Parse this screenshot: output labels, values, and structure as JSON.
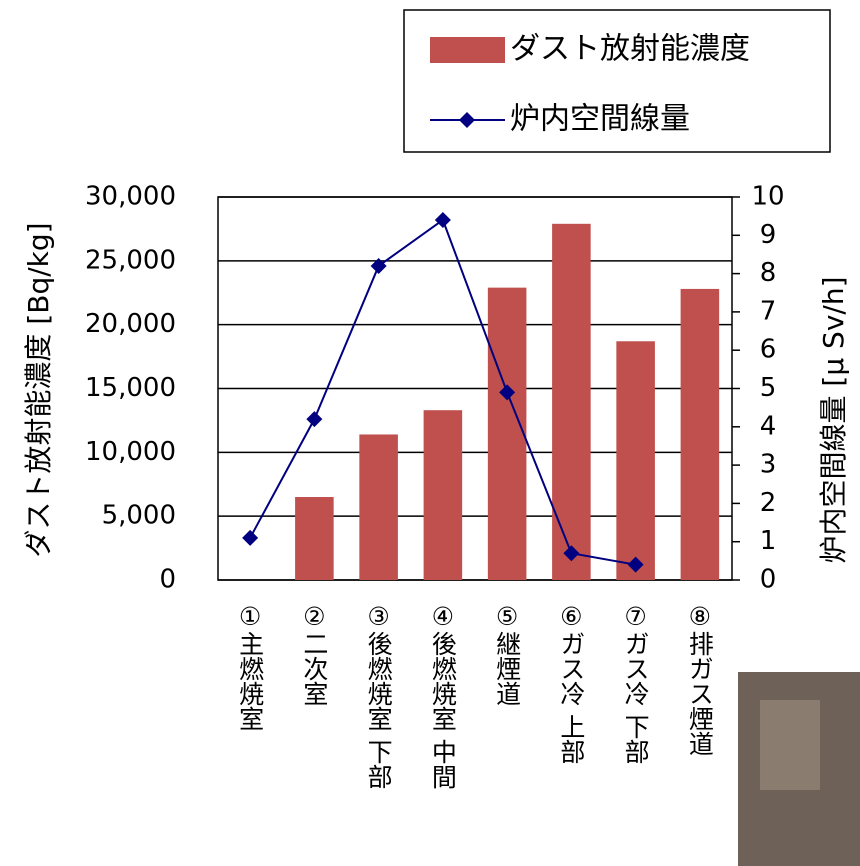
{
  "chart_data": {
    "type": "bar-line",
    "categories": [
      "①主燃焼室",
      "②二次室",
      "③後燃焼室 下部",
      "④後燃焼室 中間",
      "⑤継煙道",
      "⑥ガス冷 上部",
      "⑦ガス冷 下部",
      "⑧排ガス煙道"
    ],
    "series": [
      {
        "name": "ダスト放射能濃度",
        "type": "bar",
        "color": "#c0504d",
        "values": [
          null,
          6500,
          11400,
          13300,
          22900,
          27900,
          18700,
          22800
        ]
      },
      {
        "name": "炉内空間線量",
        "type": "line",
        "axis": "y2",
        "color": "#000080",
        "values": [
          1.1,
          4.2,
          8.2,
          9.4,
          4.9,
          0.7,
          0.4,
          null
        ]
      }
    ],
    "ylabel": "ダスト放射能濃度 [Bq/kg]",
    "y2label": "炉内空間線量 [μ Sv/h]",
    "ylim": [
      0,
      30000
    ],
    "yticks": [
      0,
      {
        "value": 5000,
        "label": "5,000"
      },
      {
        "value": 10000,
        "label": "10,000"
      },
      {
        "value": 15000,
        "label": "15,000"
      },
      {
        "value": 20000,
        "label": "20,000"
      },
      {
        "value": 25000,
        "label": "25,000"
      },
      {
        "value": 30000,
        "label": "30,000"
      }
    ],
    "y2lim": [
      0,
      10
    ],
    "y2ticks": [
      0,
      1,
      2,
      3,
      4,
      5,
      6,
      7,
      8,
      9,
      10
    ],
    "grid": true,
    "legend": "top-right"
  }
}
